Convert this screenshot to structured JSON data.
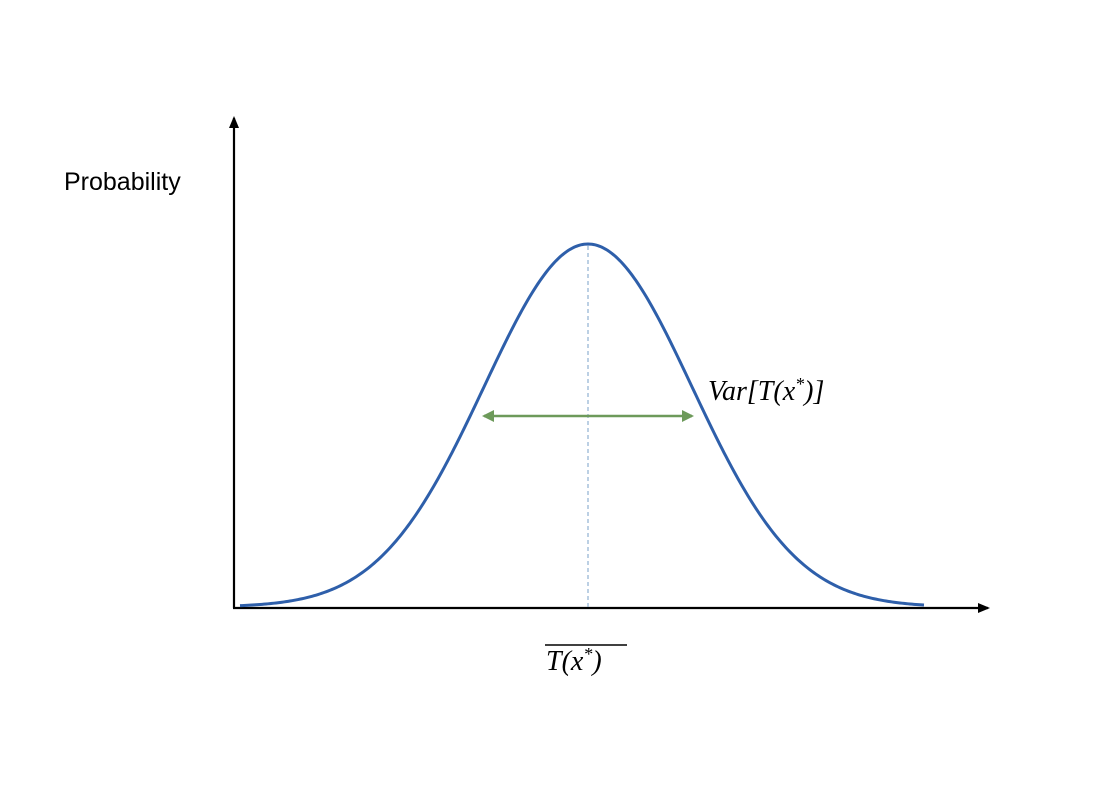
{
  "diagram": {
    "y_axis_label": "Probability",
    "variance_label": "Var[T(x*)]",
    "mean_label": "T(x*)",
    "curve_color": "#2e5faa",
    "arrow_color": "#6d9a5a",
    "center_line_color": "#7aa0c8",
    "axis_color": "#000000"
  }
}
